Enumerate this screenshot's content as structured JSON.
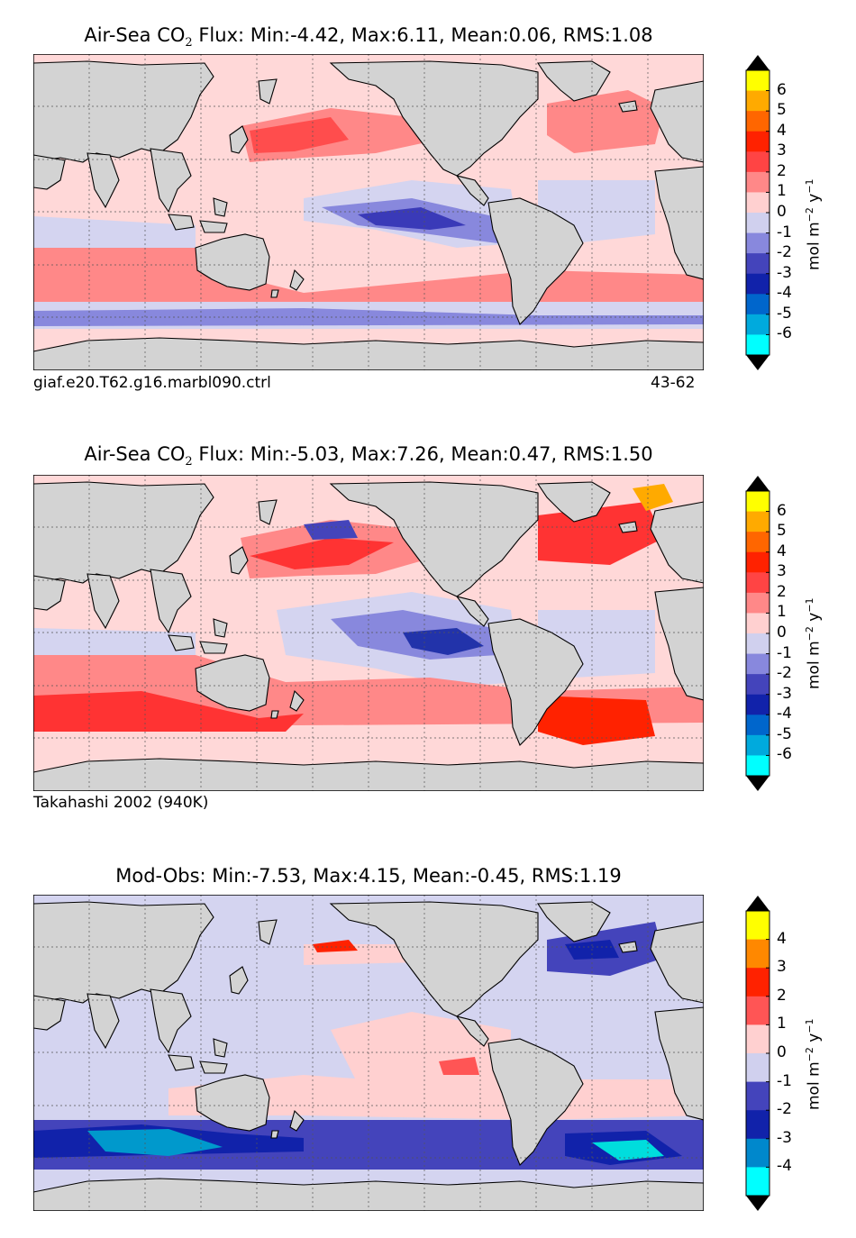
{
  "panels": [
    {
      "title_prefix": "Air-Sea CO",
      "title_sub": "2",
      "title_suffix": " Flux: Min:-4.42, Max:6.11, Mean:0.06, RMS:1.08",
      "footer_left": "giaf.e20.T62.g16.marbl090.ctrl",
      "footer_right": "43-62",
      "colorbar": {
        "ticks": [
          "6",
          "5",
          "4",
          "3",
          "2",
          "1",
          "0",
          "-1",
          "-2",
          "-3",
          "-4",
          "-5",
          "-6"
        ],
        "colors": [
          "#ffff00",
          "#ffaa00",
          "#ff6600",
          "#ff2200",
          "#ff4444",
          "#ff8888",
          "#ffd0d0",
          "#d0d0ee",
          "#8888dd",
          "#4444bb",
          "#1122aa",
          "#0066cc",
          "#00aadd",
          "#00ffff"
        ],
        "units": "mol m",
        "units_exp": "−2",
        "units_mid": " y",
        "units_exp2": "−1"
      }
    },
    {
      "title_prefix": "Air-Sea CO",
      "title_sub": "2",
      "title_suffix": " Flux: Min:-5.03, Max:7.26, Mean:0.47, RMS:1.50",
      "footer_left": "Takahashi 2002 (940K)",
      "footer_right": "",
      "colorbar": {
        "ticks": [
          "6",
          "5",
          "4",
          "3",
          "2",
          "1",
          "0",
          "-1",
          "-2",
          "-3",
          "-4",
          "-5",
          "-6"
        ],
        "colors": [
          "#ffff00",
          "#ffaa00",
          "#ff6600",
          "#ff2200",
          "#ff4444",
          "#ff8888",
          "#ffd0d0",
          "#d0d0ee",
          "#8888dd",
          "#4444bb",
          "#1122aa",
          "#0066cc",
          "#00aadd",
          "#00ffff"
        ],
        "units": "mol m",
        "units_exp": "−2",
        "units_mid": " y",
        "units_exp2": "−1"
      }
    },
    {
      "title_prefix": "Mod-Obs: Min:-7.53, Max:4.15, Mean:-0.45, RMS:1.19",
      "title_sub": "",
      "title_suffix": "",
      "footer_left": "",
      "footer_right": "",
      "colorbar": {
        "ticks": [
          "4",
          "3",
          "2",
          "1",
          "0",
          "-1",
          "-2",
          "-3",
          "-4"
        ],
        "colors": [
          "#ffff00",
          "#ff8800",
          "#ff2200",
          "#ff5555",
          "#ffd0d0",
          "#d0d0ee",
          "#4444bb",
          "#1122aa",
          "#0088cc",
          "#00ffff"
        ],
        "units": "mol m",
        "units_exp": "−2",
        "units_mid": " y",
        "units_exp2": "−1"
      }
    }
  ]
}
